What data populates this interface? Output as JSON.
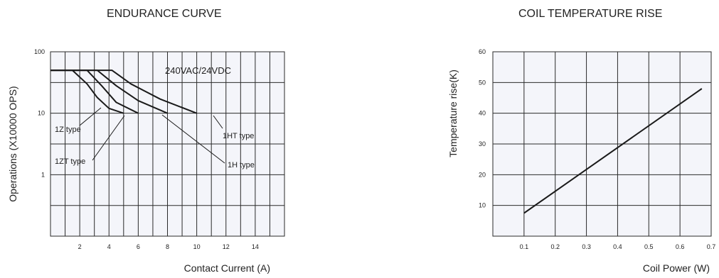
{
  "chart_data": [
    {
      "type": "line",
      "title": "ENDURANCE CURVE",
      "xlabel": "Contact Current (A)",
      "ylabel": "Operations (X10000 OPS)",
      "xlim": [
        0,
        16
      ],
      "x_ticks": [
        2,
        4,
        6,
        8,
        10,
        12,
        14
      ],
      "y_scale": "log",
      "ylim": [
        0.1,
        100
      ],
      "y_ticks": [
        1,
        10,
        100
      ],
      "grid": true,
      "annotations": [
        "240VAC/24VDC"
      ],
      "series": [
        {
          "name": "1Z type",
          "x": [
            0,
            1.5,
            2.5,
            3.2,
            4,
            5
          ],
          "y": [
            50,
            50,
            30,
            18,
            12,
            10
          ]
        },
        {
          "name": "1ZT type",
          "x": [
            0,
            2.5,
            3.5,
            4.5,
            6
          ],
          "y": [
            50,
            50,
            28,
            15,
            10
          ]
        },
        {
          "name": "1H type",
          "x": [
            0,
            3.2,
            4.5,
            6,
            8
          ],
          "y": [
            50,
            50,
            28,
            16,
            10
          ]
        },
        {
          "name": "1HT type",
          "x": [
            0,
            4.2,
            5.5,
            7.5,
            10
          ],
          "y": [
            50,
            50,
            30,
            17,
            10
          ]
        }
      ]
    },
    {
      "type": "line",
      "title": "COIL TEMPERATURE RISE",
      "xlabel": "Coil Power (W)",
      "ylabel": "Temperature rise(K)",
      "xlim": [
        0,
        0.7
      ],
      "x_ticks": [
        0.1,
        0.2,
        0.3,
        0.4,
        0.5,
        0.6,
        0.7
      ],
      "ylim": [
        0,
        60
      ],
      "y_ticks": [
        10,
        20,
        30,
        40,
        50,
        60
      ],
      "grid": true,
      "series": [
        {
          "x": [
            0.1,
            0.67
          ],
          "y": [
            7.5,
            48
          ]
        }
      ]
    }
  ]
}
